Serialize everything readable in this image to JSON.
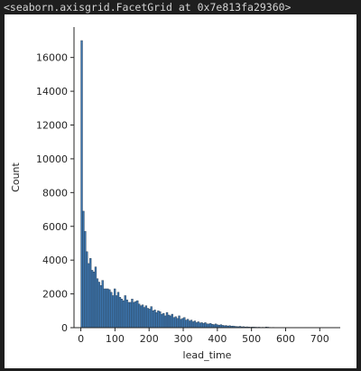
{
  "output": {
    "repr": "<seaborn.axisgrid.FacetGrid at 0x7e813fa29360>"
  },
  "colors": {
    "background": "#1e1e1e",
    "figure": "#ffffff",
    "bar_fill": "#3b75af",
    "bar_edge": "#2a3a4a",
    "axis": "#262626"
  },
  "chart_data": {
    "type": "bar",
    "title": "",
    "xlabel": "lead_time",
    "ylabel": "Count",
    "xlim": [
      -20,
      760
    ],
    "ylim": [
      0,
      17800
    ],
    "xticks": [
      0,
      100,
      200,
      300,
      400,
      500,
      600,
      700
    ],
    "yticks": [
      0,
      2000,
      4000,
      6000,
      8000,
      10000,
      12000,
      14000,
      16000
    ],
    "grid": false,
    "legend": "none",
    "bin_width": 5.1,
    "x_start": 0,
    "values": [
      17000,
      6900,
      5700,
      4500,
      3800,
      4100,
      3400,
      3300,
      3600,
      2900,
      2700,
      2500,
      2800,
      2300,
      2300,
      2300,
      2250,
      2100,
      1900,
      2300,
      1900,
      2100,
      1800,
      1700,
      1600,
      1900,
      1650,
      1500,
      1500,
      1700,
      1500,
      1550,
      1600,
      1400,
      1300,
      1350,
      1200,
      1300,
      1150,
      1100,
      1250,
      1000,
      1050,
      900,
      1000,
      950,
      800,
      850,
      700,
      900,
      750,
      700,
      800,
      600,
      650,
      550,
      700,
      500,
      550,
      600,
      450,
      500,
      400,
      450,
      350,
      400,
      300,
      350,
      280,
      300,
      250,
      300,
      230,
      220,
      250,
      200,
      180,
      220,
      170,
      150,
      180,
      140,
      120,
      130,
      100,
      120,
      90,
      100,
      80,
      70,
      60,
      80,
      50,
      60,
      40,
      50,
      40,
      30,
      40,
      35,
      30,
      25,
      30,
      20,
      25,
      20,
      40,
      30,
      20,
      15,
      20,
      15,
      10,
      15,
      10,
      10,
      15,
      10,
      8,
      10,
      8,
      6,
      10,
      8,
      5,
      6,
      5,
      4,
      5,
      4,
      3,
      4,
      3,
      3,
      2,
      3,
      2
    ]
  }
}
